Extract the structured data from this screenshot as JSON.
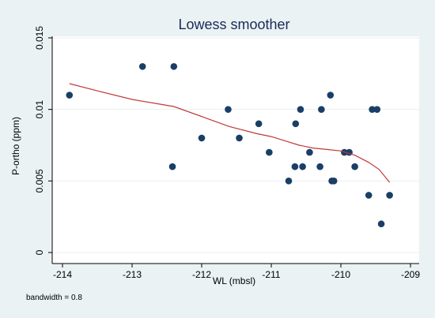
{
  "chart_data": {
    "type": "scatter",
    "title": "Lowess smoother",
    "xlabel": "WL (mbsl)",
    "ylabel": "P-ortho (ppm)",
    "xlim": [
      -214,
      -209
    ],
    "ylim": [
      0,
      0.015
    ],
    "xticks": [
      -214,
      -213,
      -212,
      -211,
      -210,
      -209
    ],
    "xtick_labels": [
      "-214",
      "-213",
      "-212",
      "-211",
      "-210",
      "-209"
    ],
    "yticks": [
      0,
      0.005,
      0.01,
      0.015
    ],
    "ytick_labels": [
      "0",
      "0.005",
      "0.01",
      "0.015"
    ],
    "grid": "horizontal",
    "note": "bandwidth = 0.8",
    "colors": {
      "points": "#1a3f66",
      "line": "#c0393b",
      "plot_bg": "#ffffff",
      "outer_bg": "#eaf2f3"
    },
    "series": [
      {
        "kind": "points",
        "x": [
          -213.9,
          -212.85,
          -212.4,
          -212.42,
          -212.0,
          -211.62,
          -211.46,
          -211.18,
          -211.03,
          -210.75,
          -210.66,
          -210.65,
          -210.58,
          -210.55,
          -210.45,
          -210.3,
          -210.28,
          -210.15,
          -210.13,
          -210.1,
          -209.95,
          -209.88,
          -209.8,
          -209.6,
          -209.55,
          -209.48,
          -209.42,
          -209.3
        ],
        "y": [
          0.011,
          0.013,
          0.013,
          0.006,
          0.008,
          0.01,
          0.008,
          0.009,
          0.007,
          0.005,
          0.006,
          0.009,
          0.01,
          0.006,
          0.007,
          0.006,
          0.01,
          0.011,
          0.005,
          0.005,
          0.007,
          0.007,
          0.006,
          0.004,
          0.01,
          0.01,
          0.002,
          0.004
        ]
      },
      {
        "kind": "line",
        "x": [
          -213.9,
          -213.5,
          -213.0,
          -212.4,
          -212.0,
          -211.6,
          -211.2,
          -211.0,
          -210.8,
          -210.6,
          -210.4,
          -210.2,
          -210.0,
          -209.8,
          -209.6,
          -209.45,
          -209.3
        ],
        "y": [
          0.0118,
          0.0113,
          0.0107,
          0.0102,
          0.0095,
          0.0088,
          0.0083,
          0.0081,
          0.0078,
          0.0075,
          0.0073,
          0.0072,
          0.0071,
          0.0068,
          0.0063,
          0.0058,
          0.0049
        ]
      }
    ]
  }
}
